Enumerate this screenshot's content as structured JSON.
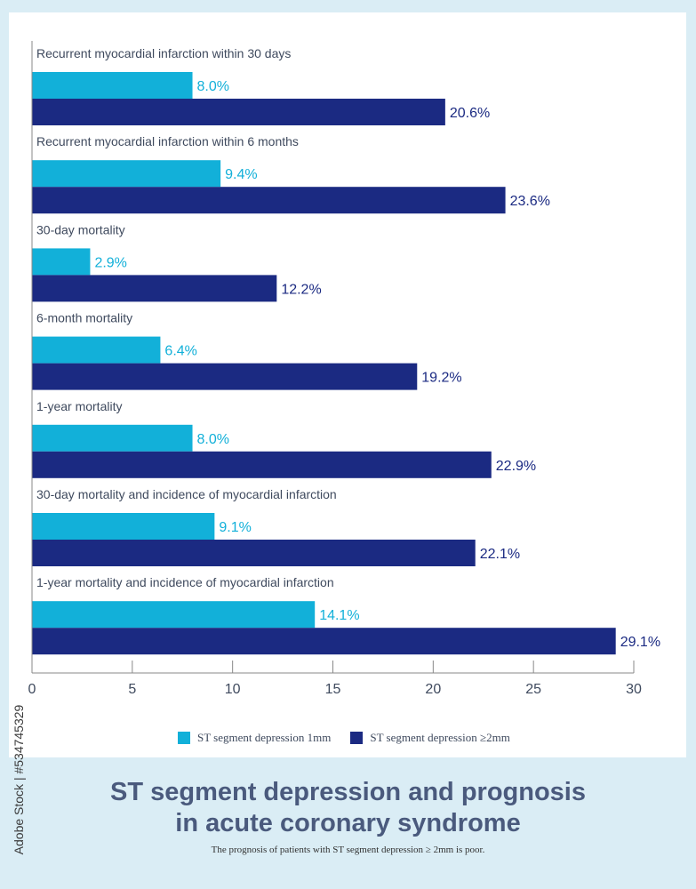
{
  "header": {
    "title_line1": "ST segment depression and prognosis",
    "title_line2": "in acute coronary syndrome",
    "subtitle": "The prognosis of patients with ST segment depression ≥ 2mm is poor."
  },
  "stock_credit": "Adobe Stock | #534745329",
  "colors": {
    "series_1mm": "#12b0d9",
    "series_2mm": "#1b2a82",
    "axis": "#888888",
    "text": "#3f4a5e"
  },
  "chart_data": {
    "type": "bar",
    "orientation": "horizontal",
    "categories": [
      "Recurrent myocardial infarction within 30 days",
      "Recurrent myocardial infarction within 6 months",
      "30-day mortality",
      "6-month mortality",
      "1-year mortality",
      "30-day mortality and incidence of myocardial infarction",
      "1-year mortality and incidence of myocardial infarction"
    ],
    "series": [
      {
        "name": "ST segment depression 1mm",
        "values": [
          8.0,
          9.4,
          2.9,
          6.4,
          8.0,
          9.1,
          14.1
        ],
        "labels": [
          "8.0%",
          "9.4%",
          "2.9%",
          "6.4%",
          "8.0%",
          "9.1%",
          "14.1%"
        ],
        "color": "#12b0d9"
      },
      {
        "name": "ST segment depression ≥2mm",
        "values": [
          20.6,
          23.6,
          12.2,
          19.2,
          22.9,
          22.1,
          29.1
        ],
        "labels": [
          "20.6%",
          "23.6%",
          "12.2%",
          "19.2%",
          "22.9%",
          "22.1%",
          "29.1%"
        ],
        "color": "#1b2a82"
      }
    ],
    "xlim": [
      0,
      30
    ],
    "xticks": [
      "0",
      "5",
      "10",
      "15",
      "20",
      "25",
      "30"
    ],
    "legend": "bottom",
    "grid": false
  }
}
